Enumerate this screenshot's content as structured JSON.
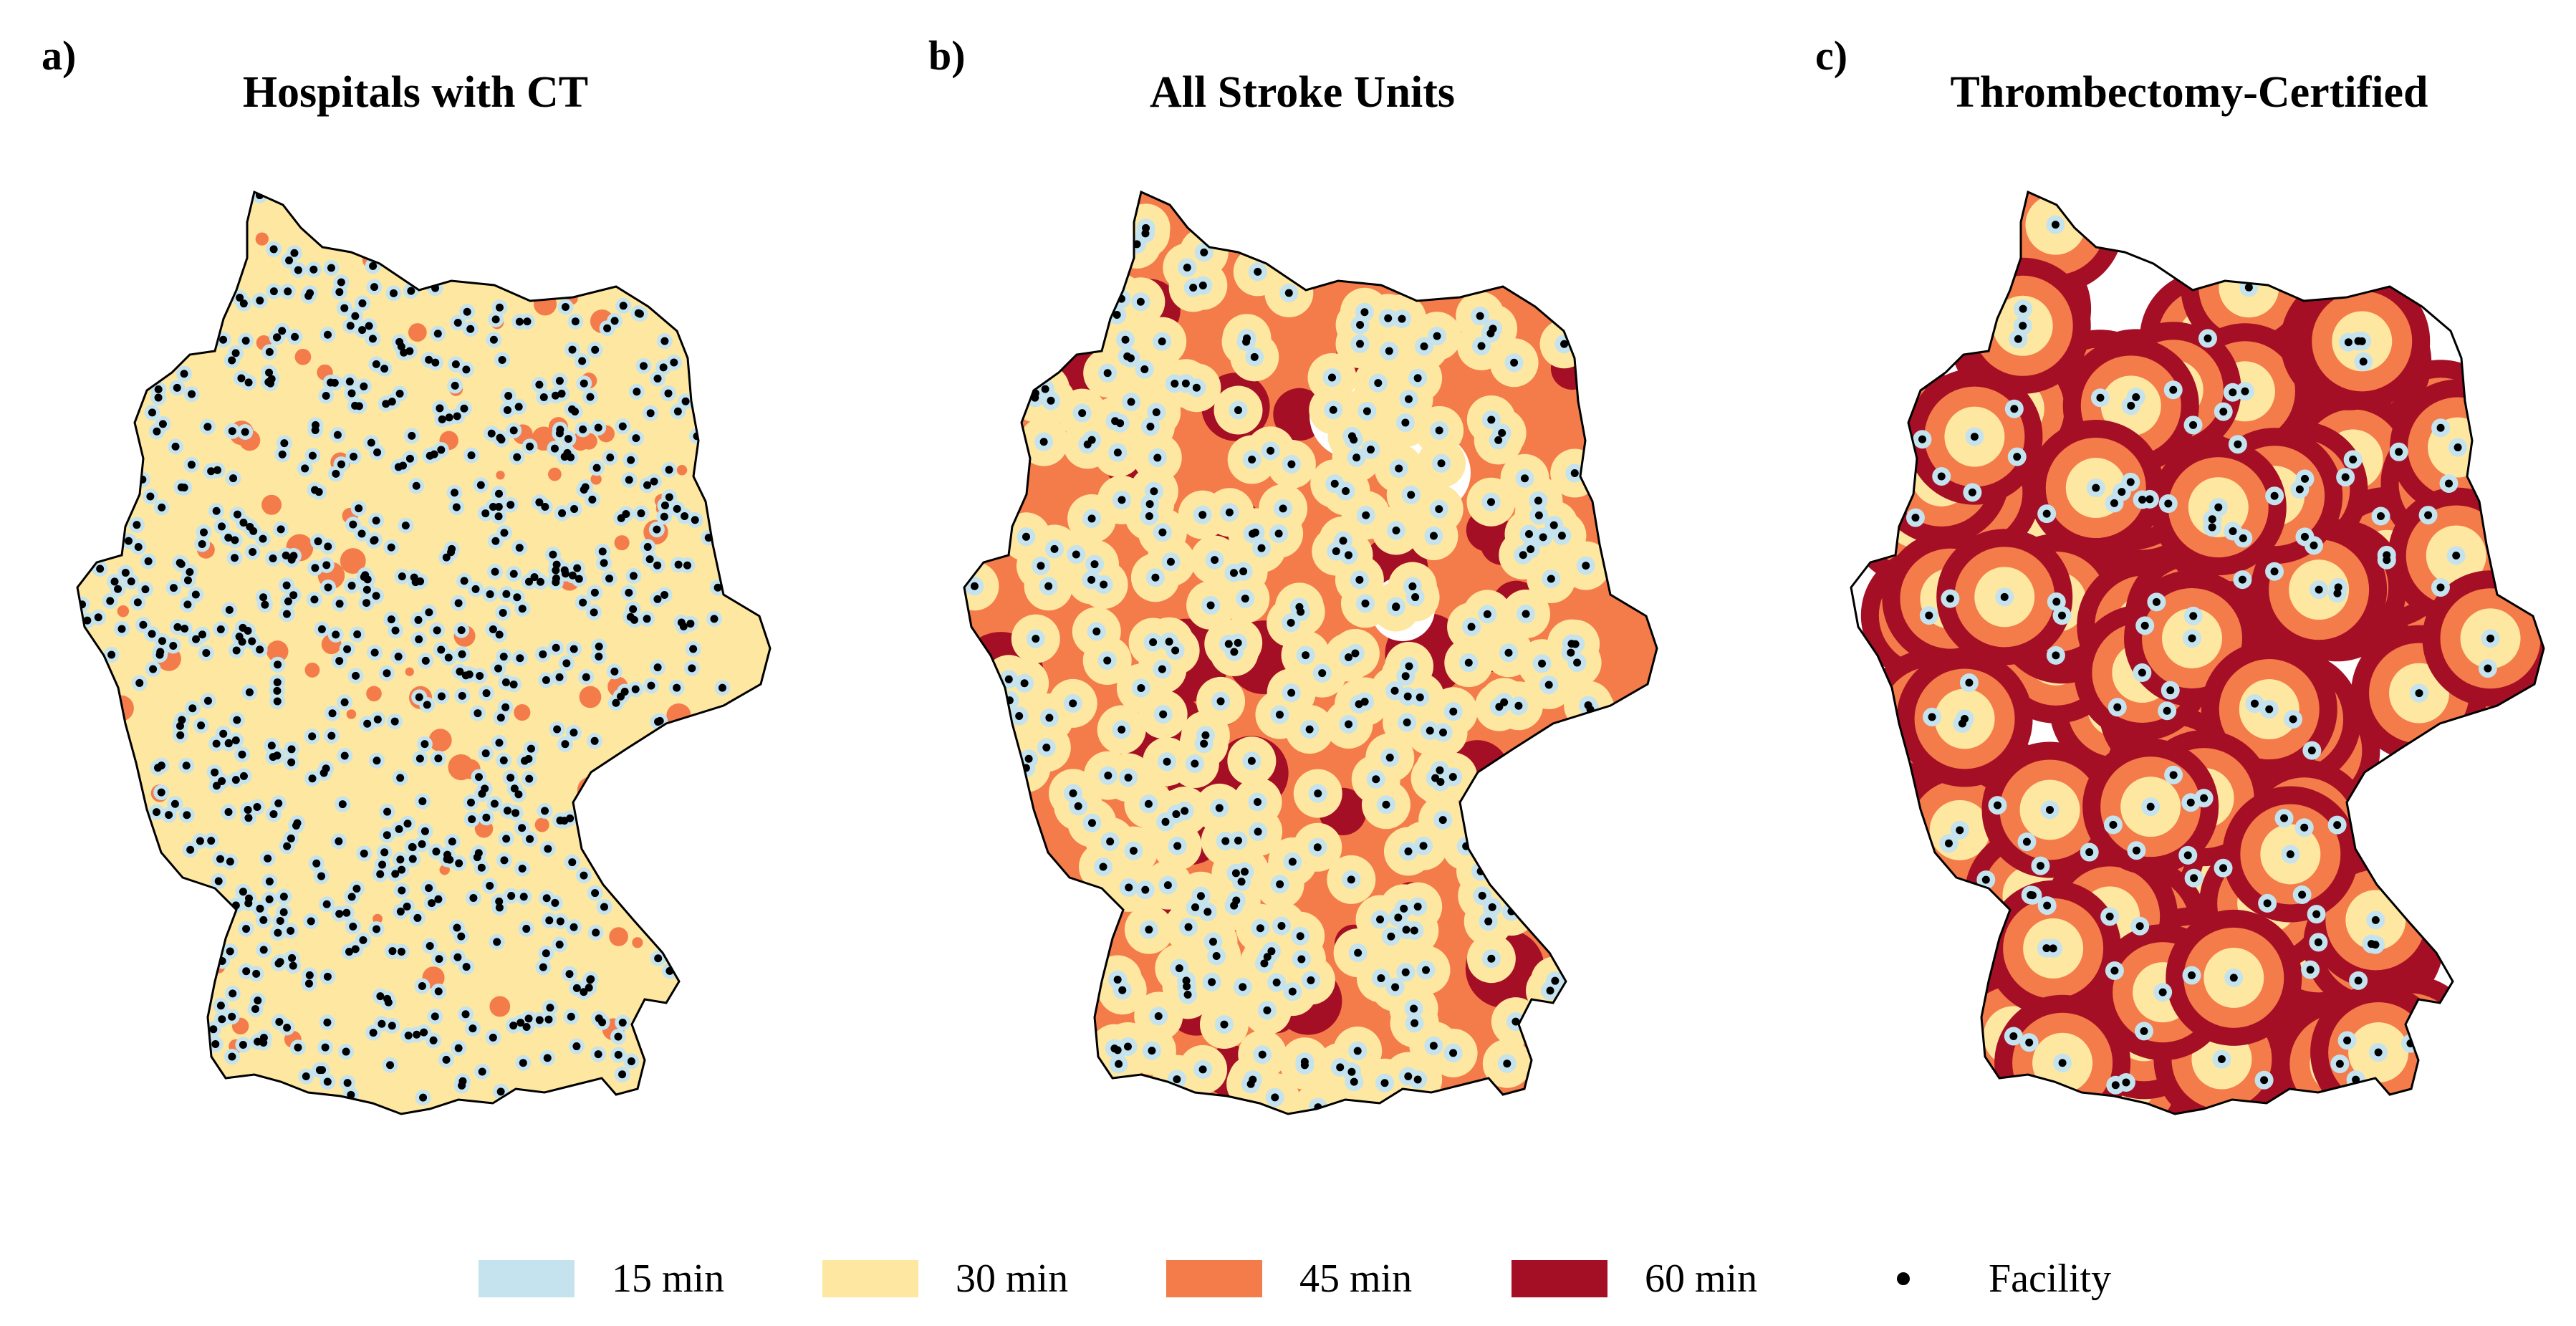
{
  "panels": [
    {
      "letter": "a)",
      "title": "Hospitals with CT",
      "density": 1.0,
      "mode": "ct"
    },
    {
      "letter": "b)",
      "title": "All Stroke Units",
      "density": 0.45,
      "mode": "stroke"
    },
    {
      "letter": "c)",
      "title": "Thrombectomy-Certified",
      "density": 0.2,
      "mode": "thrombo"
    }
  ],
  "legend": {
    "items": [
      {
        "label": "15 min",
        "color": "#c4e3ee",
        "kind": "swatch"
      },
      {
        "label": "30 min",
        "color": "#fde7a1",
        "kind": "swatch"
      },
      {
        "label": "45 min",
        "color": "#f47b4a",
        "kind": "swatch"
      },
      {
        "label": "60 min",
        "color": "#a50f25",
        "kind": "swatch"
      },
      {
        "label": "Facility",
        "color": "#000000",
        "kind": "dot"
      }
    ]
  }
}
